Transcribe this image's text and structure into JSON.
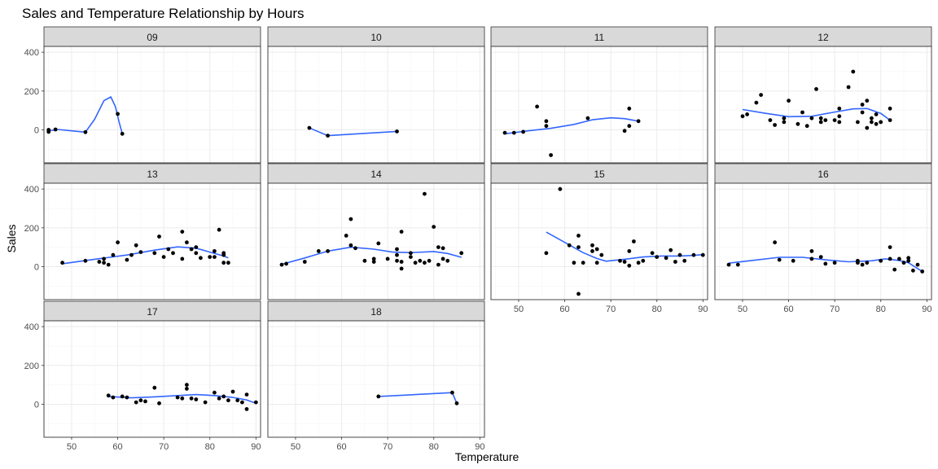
{
  "chart_data": {
    "type": "scatter",
    "title": "Sales and Temperature Relationship by Hours",
    "xlabel": "Temperature",
    "ylabel": "Sales",
    "xlim": [
      44,
      91
    ],
    "ylim": [
      -170,
      430
    ],
    "x_ticks": [
      50,
      60,
      70,
      80,
      90
    ],
    "y_ticks": [
      0,
      200,
      400
    ],
    "x_tick_labels": [
      "50",
      "60",
      "70",
      "80",
      "90"
    ],
    "y_tick_labels": [
      "0",
      "200",
      "400"
    ],
    "grid": true,
    "legend": "none",
    "colors": {
      "points": "#000000",
      "smooth_line": "#3366ff",
      "strip_fill": "#d9d9d9",
      "panel_border": "#333333",
      "grid_major": "#ebebeb",
      "grid_minor": "#f5f5f5"
    },
    "panels": [
      {
        "label": "09",
        "points": [
          [
            45,
            -10
          ],
          [
            45,
            0
          ],
          [
            46.5,
            2
          ],
          [
            53,
            -12
          ],
          [
            60,
            82
          ],
          [
            61,
            -20
          ]
        ],
        "smooth": [
          [
            45,
            -5
          ],
          [
            47,
            2
          ],
          [
            50,
            -5
          ],
          [
            53,
            -12
          ],
          [
            55,
            55
          ],
          [
            57,
            150
          ],
          [
            58.5,
            170
          ],
          [
            59.5,
            120
          ],
          [
            60.3,
            40
          ],
          [
            61,
            -20
          ]
        ]
      },
      {
        "label": "10",
        "points": [
          [
            53,
            10
          ],
          [
            57,
            -30
          ],
          [
            72,
            -8
          ]
        ],
        "smooth": [
          [
            53,
            10
          ],
          [
            57,
            -30
          ],
          [
            65,
            -18
          ],
          [
            72,
            -8
          ]
        ]
      },
      {
        "label": "11",
        "points": [
          [
            47,
            -15
          ],
          [
            49,
            -15
          ],
          [
            51,
            -10
          ],
          [
            54,
            120
          ],
          [
            56,
            45
          ],
          [
            56,
            20
          ],
          [
            57,
            -130
          ],
          [
            65,
            60
          ],
          [
            73,
            -5
          ],
          [
            74,
            110
          ],
          [
            74,
            20
          ],
          [
            76,
            45
          ]
        ],
        "smooth": [
          [
            47,
            -20
          ],
          [
            52,
            -5
          ],
          [
            57,
            8
          ],
          [
            62,
            28
          ],
          [
            66,
            52
          ],
          [
            70,
            62
          ],
          [
            73,
            58
          ],
          [
            76,
            45
          ]
        ]
      },
      {
        "label": "12",
        "points": [
          [
            50,
            70
          ],
          [
            51,
            80
          ],
          [
            53,
            140
          ],
          [
            54,
            180
          ],
          [
            56,
            50
          ],
          [
            57,
            25
          ],
          [
            59,
            60
          ],
          [
            59,
            40
          ],
          [
            60,
            150
          ],
          [
            62,
            30
          ],
          [
            63,
            90
          ],
          [
            64,
            20
          ],
          [
            65,
            60
          ],
          [
            66,
            210
          ],
          [
            67,
            40
          ],
          [
            67,
            60
          ],
          [
            68,
            50
          ],
          [
            70,
            50
          ],
          [
            71,
            110
          ],
          [
            71,
            70
          ],
          [
            71,
            40
          ],
          [
            73,
            220
          ],
          [
            74,
            300
          ],
          [
            75,
            40
          ],
          [
            76,
            130
          ],
          [
            76,
            90
          ],
          [
            77,
            150
          ],
          [
            77,
            10
          ],
          [
            78,
            40
          ],
          [
            78,
            60
          ],
          [
            79,
            30
          ],
          [
            79,
            80
          ],
          [
            80,
            40
          ],
          [
            82,
            110
          ],
          [
            82,
            50
          ]
        ],
        "smooth": [
          [
            50,
            105
          ],
          [
            55,
            85
          ],
          [
            60,
            68
          ],
          [
            65,
            70
          ],
          [
            70,
            92
          ],
          [
            74,
            108
          ],
          [
            77,
            110
          ],
          [
            80,
            85
          ],
          [
            82,
            50
          ]
        ]
      },
      {
        "label": "13",
        "points": [
          [
            48,
            20
          ],
          [
            53,
            30
          ],
          [
            56,
            25
          ],
          [
            57,
            20
          ],
          [
            57,
            40
          ],
          [
            58,
            10
          ],
          [
            59,
            60
          ],
          [
            60,
            125
          ],
          [
            62,
            35
          ],
          [
            63,
            60
          ],
          [
            64,
            110
          ],
          [
            65,
            75
          ],
          [
            68,
            70
          ],
          [
            69,
            155
          ],
          [
            70,
            50
          ],
          [
            71,
            90
          ],
          [
            72,
            70
          ],
          [
            74,
            40
          ],
          [
            74,
            180
          ],
          [
            75,
            125
          ],
          [
            76,
            90
          ],
          [
            77,
            70
          ],
          [
            77,
            100
          ],
          [
            78,
            45
          ],
          [
            80,
            50
          ],
          [
            81,
            80
          ],
          [
            81,
            50
          ],
          [
            82,
            190
          ],
          [
            83,
            60
          ],
          [
            83,
            70
          ],
          [
            83,
            20
          ],
          [
            84,
            20
          ]
        ],
        "smooth": [
          [
            48,
            15
          ],
          [
            55,
            38
          ],
          [
            62,
            60
          ],
          [
            68,
            85
          ],
          [
            73,
            102
          ],
          [
            77,
            95
          ],
          [
            80,
            75
          ],
          [
            83,
            55
          ],
          [
            84,
            45
          ]
        ]
      },
      {
        "label": "14",
        "points": [
          [
            47,
            10
          ],
          [
            48,
            15
          ],
          [
            52,
            25
          ],
          [
            55,
            80
          ],
          [
            57,
            80
          ],
          [
            61,
            160
          ],
          [
            62,
            110
          ],
          [
            62,
            245
          ],
          [
            63,
            95
          ],
          [
            65,
            30
          ],
          [
            67,
            40
          ],
          [
            67,
            25
          ],
          [
            68,
            120
          ],
          [
            70,
            40
          ],
          [
            72,
            60
          ],
          [
            72,
            90
          ],
          [
            72,
            30
          ],
          [
            73,
            -10
          ],
          [
            73,
            25
          ],
          [
            73,
            180
          ],
          [
            75,
            70
          ],
          [
            75,
            50
          ],
          [
            76,
            20
          ],
          [
            77,
            30
          ],
          [
            78,
            375
          ],
          [
            78,
            20
          ],
          [
            79,
            30
          ],
          [
            80,
            205
          ],
          [
            81,
            10
          ],
          [
            81,
            100
          ],
          [
            82,
            40
          ],
          [
            82,
            95
          ],
          [
            83,
            30
          ],
          [
            86,
            70
          ]
        ],
        "smooth": [
          [
            47,
            12
          ],
          [
            52,
            45
          ],
          [
            57,
            80
          ],
          [
            62,
            100
          ],
          [
            67,
            90
          ],
          [
            71,
            75
          ],
          [
            75,
            72
          ],
          [
            80,
            78
          ],
          [
            83,
            68
          ],
          [
            86,
            48
          ]
        ]
      },
      {
        "label": "15",
        "points": [
          [
            56,
            70
          ],
          [
            59,
            400
          ],
          [
            61,
            110
          ],
          [
            62,
            20
          ],
          [
            63,
            160
          ],
          [
            63,
            100
          ],
          [
            63,
            -140
          ],
          [
            64,
            20
          ],
          [
            66,
            80
          ],
          [
            66,
            110
          ],
          [
            67,
            90
          ],
          [
            67,
            20
          ],
          [
            68,
            60
          ],
          [
            72,
            30
          ],
          [
            73,
            25
          ],
          [
            74,
            80
          ],
          [
            74,
            5
          ],
          [
            75,
            130
          ],
          [
            76,
            20
          ],
          [
            77,
            30
          ],
          [
            79,
            70
          ],
          [
            80,
            50
          ],
          [
            82,
            45
          ],
          [
            83,
            85
          ],
          [
            84,
            25
          ],
          [
            85,
            60
          ],
          [
            86,
            30
          ],
          [
            88,
            60
          ],
          [
            90,
            60
          ]
        ],
        "smooth": [
          [
            56,
            178
          ],
          [
            60,
            125
          ],
          [
            64,
            72
          ],
          [
            67,
            42
          ],
          [
            69,
            28
          ],
          [
            73,
            38
          ],
          [
            77,
            50
          ],
          [
            81,
            55
          ],
          [
            85,
            55
          ],
          [
            88,
            58
          ],
          [
            90,
            62
          ]
        ]
      },
      {
        "label": "16",
        "points": [
          [
            47,
            10
          ],
          [
            49,
            10
          ],
          [
            57,
            125
          ],
          [
            58,
            35
          ],
          [
            61,
            30
          ],
          [
            65,
            40
          ],
          [
            65,
            80
          ],
          [
            67,
            50
          ],
          [
            68,
            15
          ],
          [
            70,
            20
          ],
          [
            75,
            20
          ],
          [
            75,
            30
          ],
          [
            76,
            10
          ],
          [
            77,
            20
          ],
          [
            80,
            30
          ],
          [
            82,
            100
          ],
          [
            82,
            40
          ],
          [
            83,
            -15
          ],
          [
            84,
            40
          ],
          [
            85,
            20
          ],
          [
            86,
            30
          ],
          [
            86,
            45
          ],
          [
            87,
            -20
          ],
          [
            88,
            10
          ],
          [
            89,
            -25
          ]
        ],
        "smooth": [
          [
            47,
            18
          ],
          [
            52,
            32
          ],
          [
            58,
            48
          ],
          [
            63,
            48
          ],
          [
            68,
            35
          ],
          [
            73,
            25
          ],
          [
            78,
            30
          ],
          [
            81,
            40
          ],
          [
            84,
            32
          ],
          [
            86,
            20
          ],
          [
            89,
            -25
          ]
        ]
      },
      {
        "label": "17",
        "points": [
          [
            58,
            45
          ],
          [
            59,
            35
          ],
          [
            61,
            40
          ],
          [
            62,
            35
          ],
          [
            64,
            10
          ],
          [
            65,
            20
          ],
          [
            66,
            15
          ],
          [
            68,
            85
          ],
          [
            69,
            5
          ],
          [
            73,
            35
          ],
          [
            74,
            30
          ],
          [
            75,
            100
          ],
          [
            75,
            80
          ],
          [
            76,
            30
          ],
          [
            77,
            25
          ],
          [
            79,
            10
          ],
          [
            81,
            60
          ],
          [
            82,
            30
          ],
          [
            83,
            40
          ],
          [
            84,
            20
          ],
          [
            85,
            65
          ],
          [
            86,
            20
          ],
          [
            87,
            10
          ],
          [
            88,
            -25
          ],
          [
            88,
            50
          ],
          [
            90,
            10
          ]
        ],
        "smooth": [
          [
            58,
            40
          ],
          [
            63,
            33
          ],
          [
            68,
            38
          ],
          [
            73,
            45
          ],
          [
            77,
            50
          ],
          [
            81,
            45
          ],
          [
            85,
            35
          ],
          [
            88,
            22
          ],
          [
            90,
            5
          ]
        ]
      },
      {
        "label": "18",
        "points": [
          [
            68,
            40
          ],
          [
            84,
            60
          ],
          [
            85,
            5
          ]
        ],
        "smooth": [
          [
            68,
            40
          ],
          [
            76,
            50
          ],
          [
            84,
            60
          ],
          [
            85,
            5
          ]
        ]
      }
    ]
  }
}
